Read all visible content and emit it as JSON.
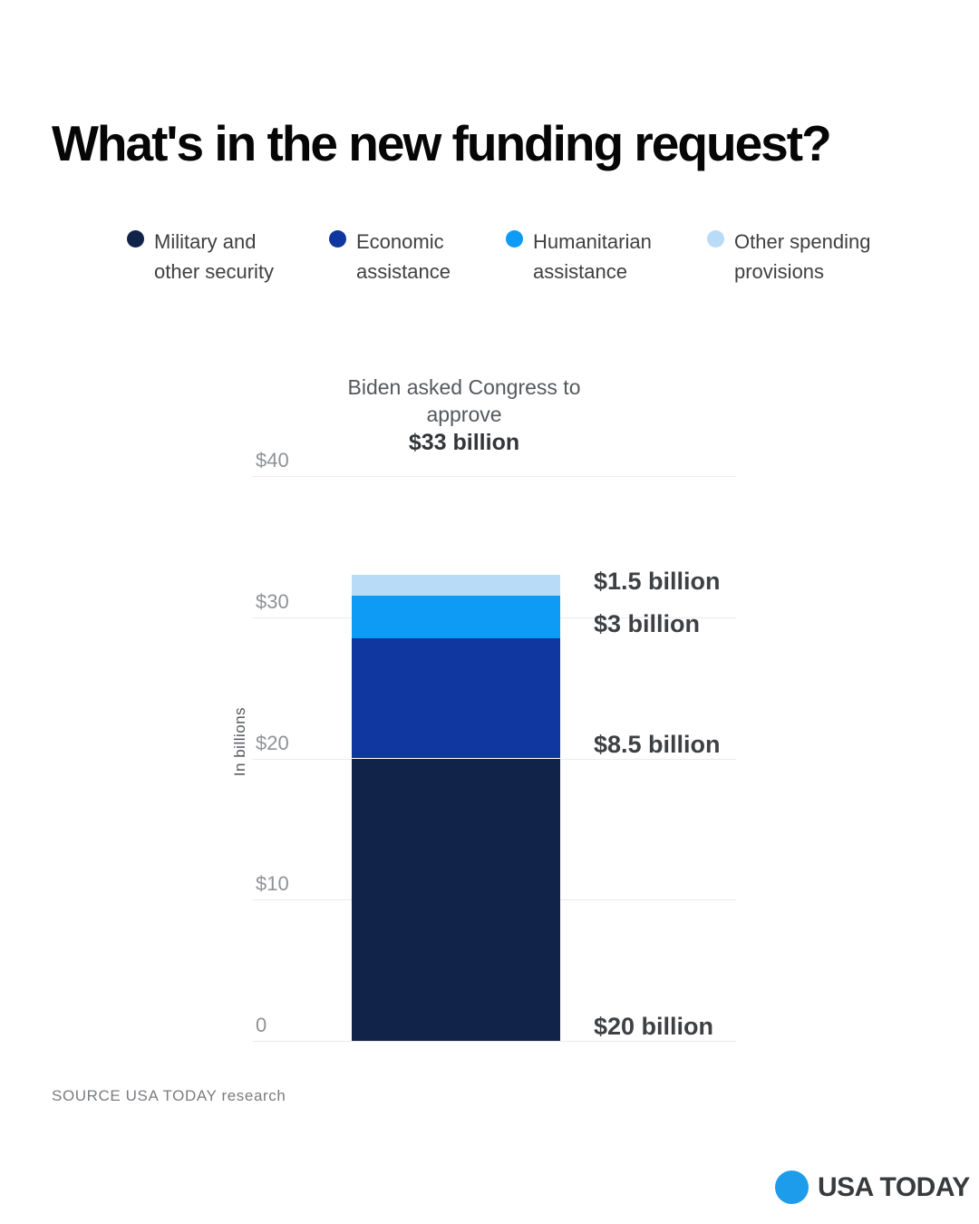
{
  "page": {
    "title": "What's in the new funding request?",
    "source": "SOURCE USA TODAY research",
    "brand": {
      "name": "USA TODAY",
      "circle_color": "#1C9CEA"
    }
  },
  "legend": {
    "items": [
      {
        "label": "Military and other security",
        "lines": [
          "Military and",
          "other security"
        ],
        "color": "#12234A"
      },
      {
        "label": "Economic assistance",
        "lines": [
          "Economic",
          "assistance"
        ],
        "color": "#10379F"
      },
      {
        "label": "Humanitarian assistance",
        "lines": [
          "Humanitarian",
          "assistance"
        ],
        "color": "#0D9BF5"
      },
      {
        "label": "Other spending provisions",
        "lines": [
          "Other spending",
          "provisions"
        ],
        "color": "#B8DCF8"
      }
    ]
  },
  "chart_data": {
    "type": "bar",
    "subtype": "single-stacked-column",
    "title_lines": [
      "Biden asked Congress to",
      "approve"
    ],
    "title_bold": "$33 billion",
    "total_value": 33,
    "xlabel": "",
    "ylabel": "In billions",
    "ylim": [
      0,
      40
    ],
    "grid": true,
    "legend_position": "top",
    "yticks": [
      {
        "value": 40,
        "label": "$40"
      },
      {
        "value": 30,
        "label": "$30"
      },
      {
        "value": 20,
        "label": "$20"
      },
      {
        "value": 10,
        "label": "$10"
      },
      {
        "value": 0,
        "label": "0"
      }
    ],
    "segments_bottom_to_top": [
      {
        "name": "Military and other security",
        "value": 20,
        "label": "$20 billion",
        "color": "#12234A"
      },
      {
        "name": "Economic assistance",
        "value": 8.5,
        "label": "$8.5 billion",
        "color": "#10379F"
      },
      {
        "name": "Humanitarian assistance",
        "value": 3,
        "label": "$3 billion",
        "color": "#0D9BF5"
      },
      {
        "name": "Other spending provisions",
        "value": 1.5,
        "label": "$1.5 billion",
        "color": "#B8DCF8"
      }
    ]
  }
}
